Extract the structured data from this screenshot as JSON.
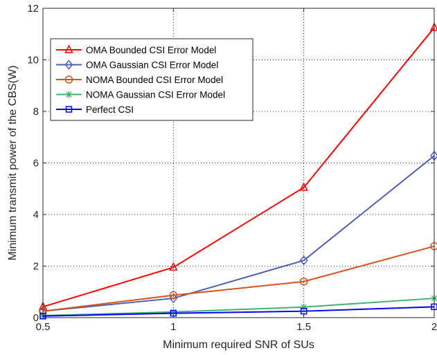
{
  "chart_data": {
    "type": "line",
    "xlabel": "Minimum required SNR of SUs",
    "ylabel": "Minimum transmit power of the CBS(W)",
    "xlim": [
      0.5,
      2
    ],
    "ylim": [
      0,
      12
    ],
    "xticks": [
      0.5,
      1,
      1.5,
      2
    ],
    "xtick_labels": [
      "0.5",
      "1",
      "1.5",
      "2"
    ],
    "yticks": [
      0,
      2,
      4,
      6,
      8,
      10,
      12
    ],
    "ytick_labels": [
      "0",
      "2",
      "4",
      "6",
      "8",
      "10",
      "12"
    ],
    "grid": true,
    "legend_position": "top-left",
    "x": [
      0.5,
      1,
      1.5,
      2
    ],
    "series": [
      {
        "name": "OMA Bounded CSI Error Model",
        "values": [
          0.42,
          1.95,
          5.05,
          11.25
        ],
        "color": "#ff0000",
        "marker": "triangle"
      },
      {
        "name": "OMA Gaussian CSI Error Model",
        "values": [
          0.25,
          0.75,
          2.22,
          6.28
        ],
        "color": "#4d5fb8",
        "marker": "diamond"
      },
      {
        "name": "NOMA Bounded CSI Error Model",
        "values": [
          0.25,
          0.87,
          1.4,
          2.77
        ],
        "color": "#d95319",
        "marker": "circle"
      },
      {
        "name": "NOMA Gaussian CSI Error Model",
        "values": [
          0.08,
          0.22,
          0.41,
          0.75
        ],
        "color": "#3cb371",
        "marker": "asterisk"
      },
      {
        "name": "Perfect CSI",
        "values": [
          0.06,
          0.17,
          0.25,
          0.42
        ],
        "color": "#0000ff",
        "marker": "square"
      }
    ]
  }
}
